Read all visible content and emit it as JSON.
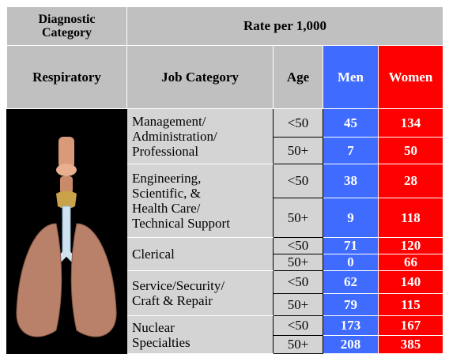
{
  "header": {
    "diagnostic_category": "Diagnostic Category",
    "rate": "Rate per 1,000"
  },
  "subheader": {
    "category": "Respiratory",
    "job": "Job Category",
    "age": "Age",
    "men": "Men",
    "women": "Women"
  },
  "groups": [
    {
      "job": [
        "Management/",
        "Administration/",
        "Professional"
      ],
      "rows": [
        {
          "age": "<50",
          "men": 45,
          "women": 134
        },
        {
          "age": "50+",
          "men": 7,
          "women": 50
        }
      ]
    },
    {
      "job": [
        "Engineering,",
        "Scientific, &",
        "Health Care/",
        "Technical Support"
      ],
      "rows": [
        {
          "age": "<50",
          "men": 38,
          "women": 28
        },
        {
          "age": "50+",
          "men": 9,
          "women": 118
        }
      ]
    },
    {
      "job": [
        "Clerical"
      ],
      "rows": [
        {
          "age": "<50",
          "men": 71,
          "women": 120
        },
        {
          "age": "50+",
          "men": 0,
          "women": 66
        }
      ]
    },
    {
      "job": [
        "Service/Security/",
        "Craft & Repair"
      ],
      "rows": [
        {
          "age": "<50",
          "men": 62,
          "women": 140
        },
        {
          "age": "50+",
          "men": 79,
          "women": 115
        }
      ]
    },
    {
      "job": [
        "Nuclear",
        "Specialties"
      ],
      "rows": [
        {
          "age": "<50",
          "men": 173,
          "women": 167
        },
        {
          "age": "50+",
          "men": 208,
          "women": 385
        }
      ]
    }
  ]
}
